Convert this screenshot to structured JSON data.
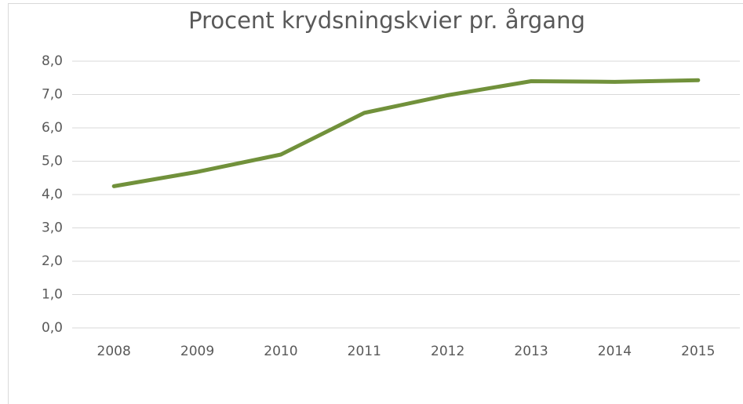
{
  "chart_data": {
    "type": "line",
    "title": "Procent krydsningskvier pr. årgang",
    "categories": [
      "2008",
      "2009",
      "2010",
      "2011",
      "2012",
      "2013",
      "2014",
      "2015"
    ],
    "series": [
      {
        "name": "Procent krydsningskvier",
        "color": "#71913b",
        "values": [
          4.25,
          4.68,
          5.2,
          6.45,
          6.98,
          7.4,
          7.38,
          7.43
        ]
      }
    ],
    "ylim": [
      0,
      8
    ],
    "yticks": [
      {
        "value": 0,
        "label": "0,0"
      },
      {
        "value": 1,
        "label": "1,0"
      },
      {
        "value": 2,
        "label": "2,0"
      },
      {
        "value": 3,
        "label": "3,0"
      },
      {
        "value": 4,
        "label": "4,0"
      },
      {
        "value": 5,
        "label": "5,0"
      },
      {
        "value": 6,
        "label": "6,0"
      },
      {
        "value": 7,
        "label": "7,0"
      },
      {
        "value": 8,
        "label": "8,0"
      }
    ],
    "grid": true
  }
}
